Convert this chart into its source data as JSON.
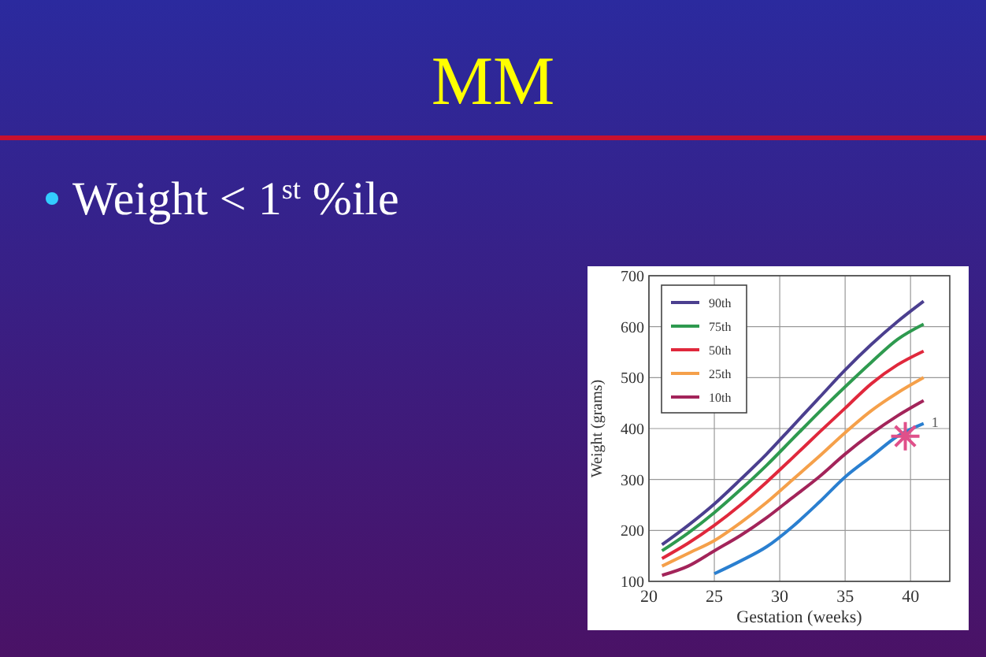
{
  "chart_data": {
    "type": "line",
    "title": "MM",
    "subtitle": "Weight < 1$^{st}$ %ile",
    "xlabel": "Gestation (weeks)",
    "ylabel": "Weight (grams)",
    "x": [
      21,
      23,
      25,
      27,
      29,
      31,
      33,
      35,
      37,
      39,
      41
    ],
    "xlim": [
      20,
      43
    ],
    "ylim": [
      100,
      700
    ],
    "xticks": [
      20,
      25,
      30,
      35,
      40
    ],
    "yticks": [
      100,
      200,
      300,
      400,
      500,
      600,
      700
    ],
    "grid": true,
    "legend": "top left",
    "marker": "none",
    "series": [
      {
        "name": "90th",
        "color": "#4b3f8f",
        "values": [
          172,
          210,
          252,
          300,
          350,
          405,
          460,
          515,
          565,
          610,
          650
        ]
      },
      {
        "name": "75th",
        "color": "#2e9a4f",
        "values": [
          160,
          195,
          235,
          280,
          328,
          380,
          432,
          482,
          530,
          575,
          605
        ]
      },
      {
        "name": "50th",
        "color": "#e0283c",
        "values": [
          145,
          175,
          210,
          250,
          295,
          343,
          392,
          440,
          488,
          525,
          552
        ]
      },
      {
        "name": "25th",
        "color": "#f5a04a",
        "values": [
          130,
          155,
          180,
          215,
          255,
          300,
          345,
          392,
          435,
          470,
          500
        ]
      },
      {
        "name": "10th",
        "color": "#a3245a",
        "values": [
          112,
          130,
          160,
          190,
          225,
          265,
          305,
          350,
          390,
          425,
          455
        ]
      },
      {
        "color": "#2a7fd0",
        "values": [
          null,
          null,
          115,
          140,
          168,
          208,
          255,
          305,
          345,
          385,
          410
        ]
      },
      {
        "type": "scatter",
        "marker": "cross",
        "color": "#e0508a",
        "x": [
          39.6
        ],
        "values": [
          385
        ]
      }
    ],
    "annotations": [
      {
        "text": "1",
        "x": 41,
        "y": 410
      }
    ]
  }
}
